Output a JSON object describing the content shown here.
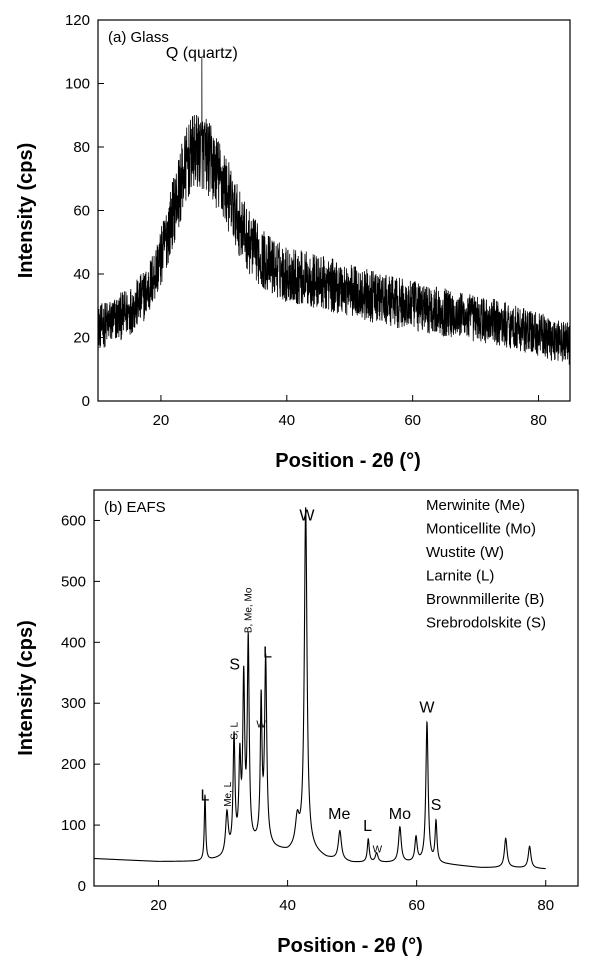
{
  "chart_data": [
    {
      "type": "line",
      "panel_label": "(a) Glass",
      "xlabel": "Position - 2θ (°)",
      "ylabel": "Intensity (cps)",
      "xlim": [
        10,
        85
      ],
      "ylim": [
        0,
        120
      ],
      "xticks": [
        20,
        40,
        60,
        80
      ],
      "yticks": [
        0,
        20,
        40,
        60,
        80,
        100,
        120
      ],
      "series": [
        {
          "x": [
            10,
            12,
            14,
            16,
            18,
            20,
            22,
            24,
            25,
            26,
            27,
            28,
            30,
            32,
            34,
            36,
            38,
            40,
            42,
            44,
            46,
            48,
            50,
            55,
            60,
            65,
            70,
            75,
            80,
            85
          ],
          "values": [
            23,
            25,
            27,
            30,
            35,
            45,
            60,
            74,
            78,
            79,
            78,
            75,
            68,
            58,
            50,
            45,
            42,
            40,
            39,
            38,
            37,
            36,
            35,
            32,
            30,
            28,
            26,
            24,
            21,
            18
          ],
          "noise_amplitude": 10
        }
      ],
      "annotations": [
        {
          "text": "Q (quartz)",
          "x": 26.5,
          "y": 108
        }
      ]
    },
    {
      "type": "line",
      "panel_label": "(b) EAFS",
      "xlabel": "Position - 2θ (°)",
      "ylabel": "Intensity (cps)",
      "xlim": [
        10,
        85
      ],
      "ylim": [
        0,
        650
      ],
      "xticks": [
        20,
        40,
        60,
        80
      ],
      "yticks": [
        0,
        100,
        200,
        300,
        400,
        500,
        600
      ],
      "legend": [
        "Merwinite (Me)",
        "Monticellite (Mo)",
        "Wustite (W)",
        "Larnite (L)",
        "Brownmillerite (B)",
        "Srebrodolskite (S)"
      ],
      "legend_position": "top-right",
      "series": [
        {
          "x_range": [
            10,
            80
          ],
          "baseline": [
            [
              10,
              45
            ],
            [
              20,
              40
            ],
            [
              27,
              40
            ],
            [
              30,
              45
            ],
            [
              33,
              60
            ],
            [
              36,
              70
            ],
            [
              38,
              60
            ],
            [
              40,
              55
            ],
            [
              42,
              60
            ],
            [
              44,
              55
            ],
            [
              46,
              45
            ],
            [
              50,
              38
            ],
            [
              55,
              38
            ],
            [
              60,
              38
            ],
            [
              65,
              35
            ],
            [
              70,
              30
            ],
            [
              75,
              30
            ],
            [
              80,
              28
            ]
          ],
          "peaks": [
            {
              "x": 27.2,
              "height": 108,
              "width": 0.18
            },
            {
              "x": 30.6,
              "height": 68,
              "width": 0.35
            },
            {
              "x": 31.7,
              "height": 185,
              "width": 0.25
            },
            {
              "x": 32.6,
              "height": 140,
              "width": 0.25
            },
            {
              "x": 33.2,
              "height": 265,
              "width": 0.25
            },
            {
              "x": 33.9,
              "height": 330,
              "width": 0.25
            },
            {
              "x": 35.9,
              "height": 225,
              "width": 0.22
            },
            {
              "x": 36.6,
              "height": 300,
              "width": 0.28
            },
            {
              "x": 41.5,
              "height": 45,
              "width": 0.5
            },
            {
              "x": 42.8,
              "height": 560,
              "width": 0.35
            },
            {
              "x": 48.1,
              "height": 48,
              "width": 0.4
            },
            {
              "x": 52.5,
              "height": 38,
              "width": 0.25
            },
            {
              "x": 53.8,
              "height": 15,
              "width": 0.35
            },
            {
              "x": 57.4,
              "height": 58,
              "width": 0.35
            },
            {
              "x": 59.9,
              "height": 40,
              "width": 0.3
            },
            {
              "x": 61.6,
              "height": 230,
              "width": 0.3
            },
            {
              "x": 63.0,
              "height": 67,
              "width": 0.25
            },
            {
              "x": 73.8,
              "height": 48,
              "width": 0.35
            },
            {
              "x": 77.5,
              "height": 36,
              "width": 0.35
            }
          ]
        }
      ],
      "annotations": [
        {
          "text": "W",
          "x": 43.0,
          "y": 600,
          "size": "big"
        },
        {
          "text": "S",
          "x": 31.8,
          "y": 355,
          "size": "big"
        },
        {
          "text": "L",
          "x": 36.9,
          "y": 375,
          "size": "big"
        },
        {
          "text": "L",
          "x": 27.2,
          "y": 140,
          "size": "big"
        },
        {
          "text": "Me",
          "x": 48.0,
          "y": 110,
          "size": "big"
        },
        {
          "text": "L",
          "x": 52.4,
          "y": 90,
          "size": "big"
        },
        {
          "text": "Mo",
          "x": 57.4,
          "y": 110,
          "size": "big"
        },
        {
          "text": "W",
          "x": 61.6,
          "y": 285,
          "size": "big"
        },
        {
          "text": "S",
          "x": 63.0,
          "y": 125,
          "size": "big"
        },
        {
          "text": "W",
          "x": 35.9,
          "y": 260,
          "size": "small"
        },
        {
          "text": "W",
          "x": 53.9,
          "y": 55,
          "size": "small"
        },
        {
          "text": "Me, L",
          "x": 30.6,
          "y": 130,
          "size": "small",
          "vertical": true
        },
        {
          "text": "S, L",
          "x": 31.6,
          "y": 240,
          "size": "small",
          "vertical": true
        },
        {
          "text": "B, Me, Mo",
          "x": 33.8,
          "y": 415,
          "size": "small",
          "vertical": true
        }
      ]
    }
  ]
}
